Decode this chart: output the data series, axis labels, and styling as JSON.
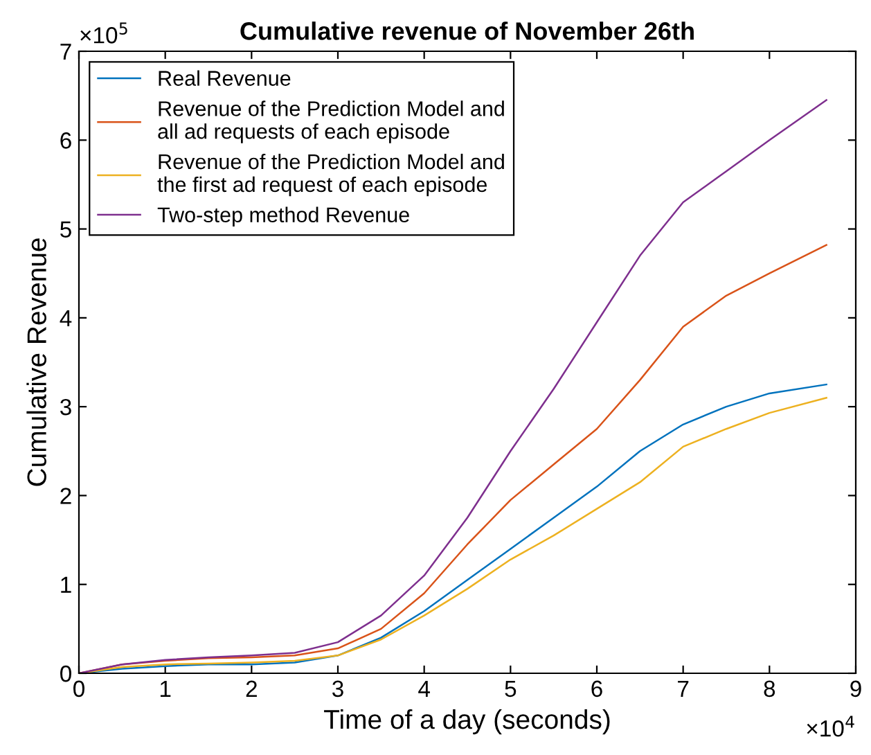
{
  "chart_data": {
    "type": "line",
    "title": "Cumulative revenue of November 26th",
    "xlabel": "Time of a day (seconds)",
    "ylabel": "Cumulative Revenue",
    "annotations": [
      "×10$^{5}$",
      "×10$^{4}$"
    ],
    "x": [
      0,
      0.5,
      1,
      1.5,
      2,
      2.5,
      3,
      3.5,
      4,
      4.5,
      5,
      5.5,
      6,
      6.5,
      7,
      7.5,
      8,
      8.66
    ],
    "series": [
      {
        "name": "Real Revenue",
        "color": "#0072bd",
        "values": [
          0,
          0.05,
          0.08,
          0.1,
          0.1,
          0.12,
          0.2,
          0.4,
          0.7,
          1.05,
          1.4,
          1.75,
          2.1,
          2.5,
          2.8,
          3.0,
          3.15,
          3.25
        ]
      },
      {
        "name": "Revenue of the Prediction Model and\nall ad requests of each episode",
        "color": "#d95319",
        "values": [
          0,
          0.1,
          0.14,
          0.17,
          0.18,
          0.2,
          0.28,
          0.5,
          0.9,
          1.45,
          1.95,
          2.35,
          2.75,
          3.3,
          3.9,
          4.25,
          4.5,
          4.82
        ]
      },
      {
        "name": "Revenue of the Prediction Model and\nthe first ad request of each episode",
        "color": "#edb120",
        "values": [
          0,
          0.07,
          0.1,
          0.11,
          0.12,
          0.14,
          0.2,
          0.38,
          0.65,
          0.95,
          1.28,
          1.55,
          1.85,
          2.15,
          2.55,
          2.75,
          2.93,
          3.1
        ]
      },
      {
        "name": "Two-step method Revenue",
        "color": "#7e2f8e",
        "values": [
          0,
          0.1,
          0.15,
          0.18,
          0.2,
          0.23,
          0.35,
          0.65,
          1.1,
          1.75,
          2.5,
          3.2,
          3.95,
          4.7,
          5.3,
          5.65,
          6.0,
          6.45
        ]
      }
    ],
    "xlim": [
      0,
      9
    ],
    "xticks": [
      0,
      1,
      2,
      3,
      4,
      5,
      6,
      7,
      8,
      9
    ],
    "ylim": [
      0,
      7
    ],
    "yticks": [
      0,
      1,
      2,
      3,
      4,
      5,
      6,
      7
    ],
    "legend": "top left",
    "grid": false
  }
}
